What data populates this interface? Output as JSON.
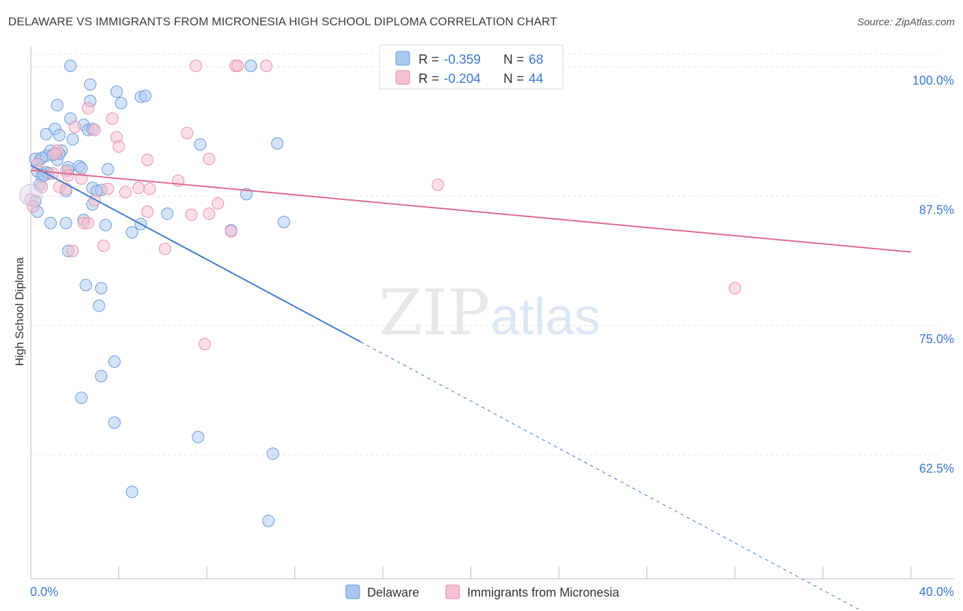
{
  "title": "DELAWARE VS IMMIGRANTS FROM MICRONESIA HIGH SCHOOL DIPLOMA CORRELATION CHART",
  "source": "Source: ZipAtlas.com",
  "watermark": {
    "zip": "ZIP",
    "atlas": "atlas"
  },
  "legend_box": {
    "rows": [
      {
        "r_label": "R = ",
        "r_value": "-0.359",
        "n_label": "N = ",
        "n_value": "68",
        "color": "#a9c8f0",
        "stroke": "#6a9ad8"
      },
      {
        "r_label": "R = ",
        "r_value": "-0.204",
        "n_label": "N = ",
        "n_value": "44",
        "color": "#f7c0d0",
        "stroke": "#e890a8"
      }
    ]
  },
  "chart_data": {
    "type": "scatter",
    "title": "DELAWARE VS IMMIGRANTS FROM MICRONESIA HIGH SCHOOL DIPLOMA CORRELATION CHART",
    "xlabel": "",
    "ylabel": "High School Diploma",
    "xlim": [
      0,
      40
    ],
    "ylim": [
      50.5,
      101.5
    ],
    "x_tick_labels": [
      "0.0%",
      "40.0%"
    ],
    "y_ticks": [
      62.5,
      75.0,
      87.5,
      100.0
    ],
    "y_tick_labels": [
      "62.5%",
      "75.0%",
      "87.5%",
      "100.0%"
    ],
    "grid": true,
    "legend": [
      "Delaware",
      "Immigrants from Micronesia"
    ],
    "series": [
      {
        "name": "Delaware",
        "color": "#6a9ad8",
        "fill": "#a9c8f0",
        "line_color": "#3a78d0",
        "trend": {
          "x0": 0,
          "y0": 90.5,
          "x1": 15.0,
          "y1": 73.4,
          "dash_x1": 38.1,
          "dash_y1": 47.0
        },
        "points": [
          [
            1.8,
            100.1
          ],
          [
            2.7,
            98.3
          ],
          [
            3.9,
            97.6
          ],
          [
            5.0,
            97.1
          ],
          [
            1.2,
            96.3
          ],
          [
            2.7,
            96.7
          ],
          [
            0.4,
            91.0
          ],
          [
            1.8,
            95.0
          ],
          [
            2.4,
            94.4
          ],
          [
            2.6,
            93.9
          ],
          [
            1.1,
            94.0
          ],
          [
            0.7,
            93.5
          ],
          [
            1.3,
            93.4
          ],
          [
            7.7,
            92.5
          ],
          [
            11.2,
            92.6
          ],
          [
            0.7,
            91.4
          ],
          [
            0.2,
            91.1
          ],
          [
            1.2,
            91.0
          ],
          [
            0.9,
            91.9
          ],
          [
            1.4,
            91.9
          ],
          [
            1.3,
            91.6
          ],
          [
            2.2,
            90.4
          ],
          [
            1.7,
            90.0
          ],
          [
            1.7,
            90.3
          ],
          [
            2.3,
            90.2
          ],
          [
            3.5,
            90.1
          ],
          [
            0.3,
            89.9
          ],
          [
            0.7,
            89.8
          ],
          [
            0.5,
            89.4
          ],
          [
            0.8,
            89.7
          ],
          [
            1.6,
            88.0
          ],
          [
            2.8,
            88.3
          ],
          [
            3.2,
            88.1
          ],
          [
            9.8,
            87.7
          ],
          [
            2.8,
            86.7
          ],
          [
            0.3,
            86.0
          ],
          [
            6.2,
            85.8
          ],
          [
            2.4,
            85.2
          ],
          [
            0.9,
            84.9
          ],
          [
            1.6,
            84.9
          ],
          [
            3.4,
            84.7
          ],
          [
            4.6,
            84.0
          ],
          [
            5.0,
            84.8
          ],
          [
            11.5,
            85.0
          ],
          [
            9.1,
            84.2
          ],
          [
            1.7,
            82.2
          ],
          [
            2.5,
            78.9
          ],
          [
            3.2,
            78.6
          ],
          [
            3.1,
            76.9
          ],
          [
            3.8,
            71.5
          ],
          [
            3.2,
            70.1
          ],
          [
            2.3,
            68.0
          ],
          [
            3.8,
            65.6
          ],
          [
            7.6,
            64.2
          ],
          [
            11.0,
            62.6
          ],
          [
            4.6,
            58.9
          ],
          [
            10.8,
            56.1
          ],
          [
            5.2,
            97.2
          ],
          [
            2.8,
            94.0
          ],
          [
            0.5,
            91.2
          ],
          [
            10.0,
            100.1
          ],
          [
            4.1,
            96.5
          ],
          [
            0.6,
            89.5
          ],
          [
            1.0,
            91.5
          ],
          [
            1.9,
            93.0
          ],
          [
            3.0,
            88.0
          ],
          [
            0.4,
            88.6
          ],
          [
            0.2,
            87.0
          ]
        ]
      },
      {
        "name": "Immigrants from Micronesia",
        "color": "#e890a8",
        "fill": "#f7c0d0",
        "line_color": "#e06890",
        "trend": {
          "x0": 0,
          "y0": 90.0,
          "x1": 40.0,
          "y1": 82.1
        },
        "points": [
          [
            7.5,
            100.1
          ],
          [
            9.3,
            100.1
          ],
          [
            9.4,
            100.1
          ],
          [
            10.7,
            100.1
          ],
          [
            2.6,
            96.0
          ],
          [
            3.7,
            95.0
          ],
          [
            2.9,
            93.9
          ],
          [
            7.1,
            93.6
          ],
          [
            3.9,
            93.2
          ],
          [
            4.0,
            92.3
          ],
          [
            2.0,
            94.2
          ],
          [
            1.2,
            91.9
          ],
          [
            1.1,
            91.6
          ],
          [
            5.3,
            91.0
          ],
          [
            8.1,
            91.1
          ],
          [
            1.6,
            89.9
          ],
          [
            1.0,
            89.7
          ],
          [
            1.7,
            89.5
          ],
          [
            2.3,
            89.2
          ],
          [
            6.7,
            89.0
          ],
          [
            0.5,
            88.4
          ],
          [
            1.3,
            88.4
          ],
          [
            1.6,
            88.2
          ],
          [
            3.5,
            88.2
          ],
          [
            4.3,
            87.9
          ],
          [
            4.9,
            88.3
          ],
          [
            5.4,
            88.2
          ],
          [
            18.5,
            88.6
          ],
          [
            2.9,
            87.1
          ],
          [
            8.5,
            86.8
          ],
          [
            5.3,
            86.0
          ],
          [
            7.3,
            85.7
          ],
          [
            8.1,
            85.8
          ],
          [
            2.4,
            84.9
          ],
          [
            2.6,
            84.9
          ],
          [
            9.1,
            84.1
          ],
          [
            3.3,
            82.7
          ],
          [
            6.1,
            82.4
          ],
          [
            1.9,
            82.2
          ],
          [
            32.0,
            78.6
          ],
          [
            7.9,
            73.2
          ],
          [
            0.0,
            87.2
          ],
          [
            0.3,
            90.6
          ],
          [
            0.1,
            86.5
          ]
        ]
      }
    ]
  }
}
